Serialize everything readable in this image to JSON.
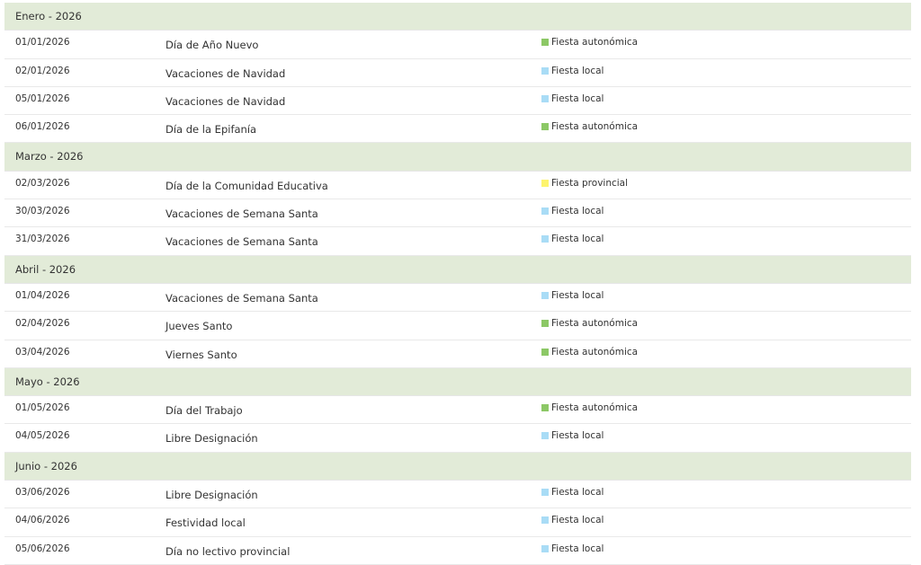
{
  "type_colors": {
    "Fiesta autonómica": "#8cc866",
    "Fiesta local": "#a9dcf6",
    "Fiesta provincial": "#fdf46e"
  },
  "header_bg": "#e2ebd8",
  "months": [
    {
      "title": "Enero - 2026",
      "rows": [
        {
          "date": "01/01/2026",
          "name": "Día de Año Nuevo",
          "type": "Fiesta autonómica"
        },
        {
          "date": "02/01/2026",
          "name": "Vacaciones de Navidad",
          "type": "Fiesta local"
        },
        {
          "date": "05/01/2026",
          "name": "Vacaciones de Navidad",
          "type": "Fiesta local"
        },
        {
          "date": "06/01/2026",
          "name": "Día de la Epifanía",
          "type": "Fiesta autonómica"
        }
      ]
    },
    {
      "title": "Marzo - 2026",
      "rows": [
        {
          "date": "02/03/2026",
          "name": "Día de la Comunidad Educativa",
          "type": "Fiesta provincial"
        },
        {
          "date": "30/03/2026",
          "name": "Vacaciones de Semana Santa",
          "type": "Fiesta local"
        },
        {
          "date": "31/03/2026",
          "name": "Vacaciones de Semana Santa",
          "type": "Fiesta local"
        }
      ]
    },
    {
      "title": "Abril - 2026",
      "rows": [
        {
          "date": "01/04/2026",
          "name": "Vacaciones de Semana Santa",
          "type": "Fiesta local"
        },
        {
          "date": "02/04/2026",
          "name": "Jueves Santo",
          "type": "Fiesta autonómica"
        },
        {
          "date": "03/04/2026",
          "name": "Viernes Santo",
          "type": "Fiesta autonómica"
        }
      ]
    },
    {
      "title": "Mayo - 2026",
      "rows": [
        {
          "date": "01/05/2026",
          "name": "Día del Trabajo",
          "type": "Fiesta autonómica"
        },
        {
          "date": "04/05/2026",
          "name": "Libre Designación",
          "type": "Fiesta local"
        }
      ]
    },
    {
      "title": "Junio - 2026",
      "rows": [
        {
          "date": "03/06/2026",
          "name": "Libre Designación",
          "type": "Fiesta local"
        },
        {
          "date": "04/06/2026",
          "name": "Festividad local",
          "type": "Fiesta local"
        },
        {
          "date": "05/06/2026",
          "name": "Día no lectivo provincial",
          "type": "Fiesta local"
        }
      ]
    }
  ]
}
